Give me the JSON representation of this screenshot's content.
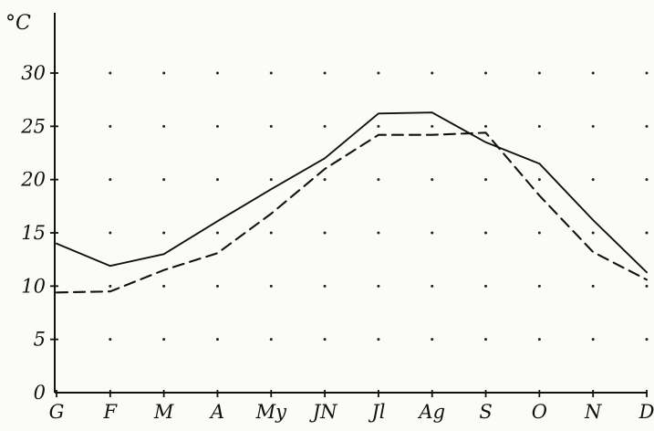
{
  "chart_data": {
    "type": "line",
    "title": "",
    "xlabel": "",
    "ylabel": "°C",
    "categories": [
      "G",
      "F",
      "M",
      "A",
      "My",
      "JN",
      "Jl",
      "Ag",
      "S",
      "O",
      "N",
      "D"
    ],
    "y_ticks": [
      0,
      5,
      10,
      15,
      20,
      25,
      30
    ],
    "ylim": [
      0,
      33
    ],
    "grid": "dots",
    "series": [
      {
        "style": "solid",
        "values": [
          14.0,
          11.9,
          13.0,
          16.1,
          19.1,
          22.0,
          26.2,
          26.3,
          23.5,
          21.5,
          16.2,
          11.3
        ]
      },
      {
        "style": "dashed",
        "values": [
          9.4,
          9.5,
          11.5,
          13.1,
          16.8,
          21.0,
          24.2,
          24.2,
          24.4,
          18.5,
          13.2,
          10.6
        ]
      }
    ]
  }
}
